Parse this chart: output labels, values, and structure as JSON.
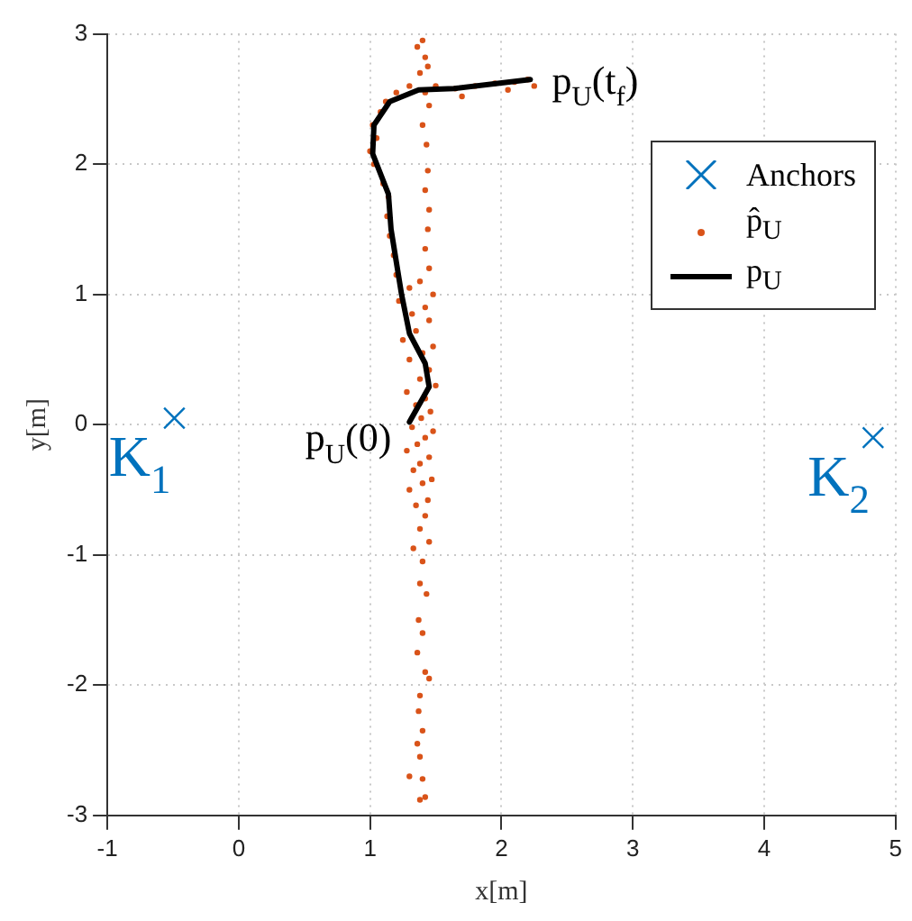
{
  "chart_data": {
    "type": "scatter",
    "xlabel": "x[m]",
    "ylabel": "y[m]",
    "xlim": [
      -1,
      5
    ],
    "ylim": [
      -3,
      3
    ],
    "xticks": [
      -1,
      0,
      1,
      2,
      3,
      4,
      5
    ],
    "yticks": [
      -3,
      -2,
      -1,
      0,
      1,
      2,
      3
    ],
    "grid": true,
    "legend": "top right",
    "series": [
      {
        "name": "Anchors",
        "marker": "cross",
        "color": "#0072bd",
        "x": [
          -0.49,
          4.83
        ],
        "values": [
          0.05,
          -0.1
        ]
      },
      {
        "name": "p̂$_{U}$",
        "marker": "circle",
        "color": "#d95319",
        "x": [
          1.38,
          1.42,
          1.3,
          1.4,
          1.38,
          1.36,
          1.4,
          1.37,
          1.38,
          1.45,
          1.42,
          1.36,
          1.4,
          1.37,
          1.43,
          1.38,
          1.4,
          1.33,
          1.45,
          1.38,
          1.42,
          1.35,
          1.44,
          1.3,
          1.4,
          1.47,
          1.33,
          1.38,
          1.45,
          1.28,
          1.36,
          1.42,
          1.48,
          1.32,
          1.39,
          1.46,
          1.35,
          1.42,
          1.28,
          1.5,
          1.38,
          1.45,
          1.3,
          1.4,
          1.48,
          1.25,
          1.35,
          1.45,
          1.32,
          1.42,
          1.22,
          1.48,
          1.3,
          1.38,
          1.2,
          1.45,
          1.18,
          1.42,
          1.15,
          1.44,
          1.13,
          1.45,
          1.14,
          1.42,
          1.1,
          1.44,
          1.03,
          1.0,
          1.43,
          1.05,
          1.02,
          1.4,
          1.08,
          1.12,
          1.45,
          1.2,
          1.3,
          1.42,
          1.5,
          1.65,
          1.8,
          1.95,
          2.1,
          2.2,
          2.25,
          2.05,
          1.7,
          1.38,
          1.42,
          1.4,
          1.36,
          1.44
        ],
        "values": [
          -2.88,
          -2.86,
          -2.7,
          -2.72,
          -2.55,
          -2.45,
          -2.35,
          -2.2,
          -2.08,
          -1.95,
          -1.9,
          -1.75,
          -1.6,
          -1.5,
          -1.3,
          -1.22,
          -1.05,
          -0.95,
          -0.9,
          -0.8,
          -0.7,
          -0.62,
          -0.58,
          -0.5,
          -0.45,
          -0.42,
          -0.35,
          -0.3,
          -0.25,
          -0.2,
          -0.15,
          -0.1,
          -0.05,
          -0.02,
          0.05,
          0.1,
          0.15,
          0.2,
          0.25,
          0.3,
          0.35,
          0.42,
          0.5,
          0.55,
          0.6,
          0.65,
          0.72,
          0.8,
          0.85,
          0.9,
          0.95,
          1.0,
          1.05,
          1.1,
          1.15,
          1.2,
          1.3,
          1.35,
          1.45,
          1.5,
          1.6,
          1.65,
          1.75,
          1.8,
          1.85,
          1.95,
          2.0,
          2.1,
          2.15,
          2.2,
          2.3,
          2.3,
          2.4,
          2.48,
          2.45,
          2.55,
          2.6,
          2.55,
          2.6,
          2.58,
          2.6,
          2.62,
          2.63,
          2.65,
          2.6,
          2.57,
          2.52,
          2.7,
          2.82,
          2.95,
          2.9,
          2.75
        ]
      },
      {
        "name": "p$_{U}$",
        "type": "line",
        "marker": "none",
        "color": "#000000",
        "x": [
          1.3,
          1.45,
          1.42,
          1.3,
          1.24,
          1.16,
          1.14,
          1.02,
          1.03,
          1.15,
          1.37,
          1.64,
          2.22
        ],
        "values": [
          0.02,
          0.29,
          0.47,
          0.7,
          1.0,
          1.5,
          1.77,
          2.08,
          2.3,
          2.48,
          2.57,
          2.58,
          2.65
        ]
      }
    ],
    "annotations": [
      {
        "text": "p$_{U}$(t$_{f}$)",
        "x": 2.22,
        "y": 2.65
      },
      {
        "text": "p$_{U}$(0)",
        "x": 1.3,
        "y": 0.02
      },
      {
        "text": "K$_{1}$",
        "x": -0.49,
        "y": 0.05
      },
      {
        "text": "K$_{2}$",
        "x": 4.83,
        "y": -0.1
      }
    ]
  }
}
